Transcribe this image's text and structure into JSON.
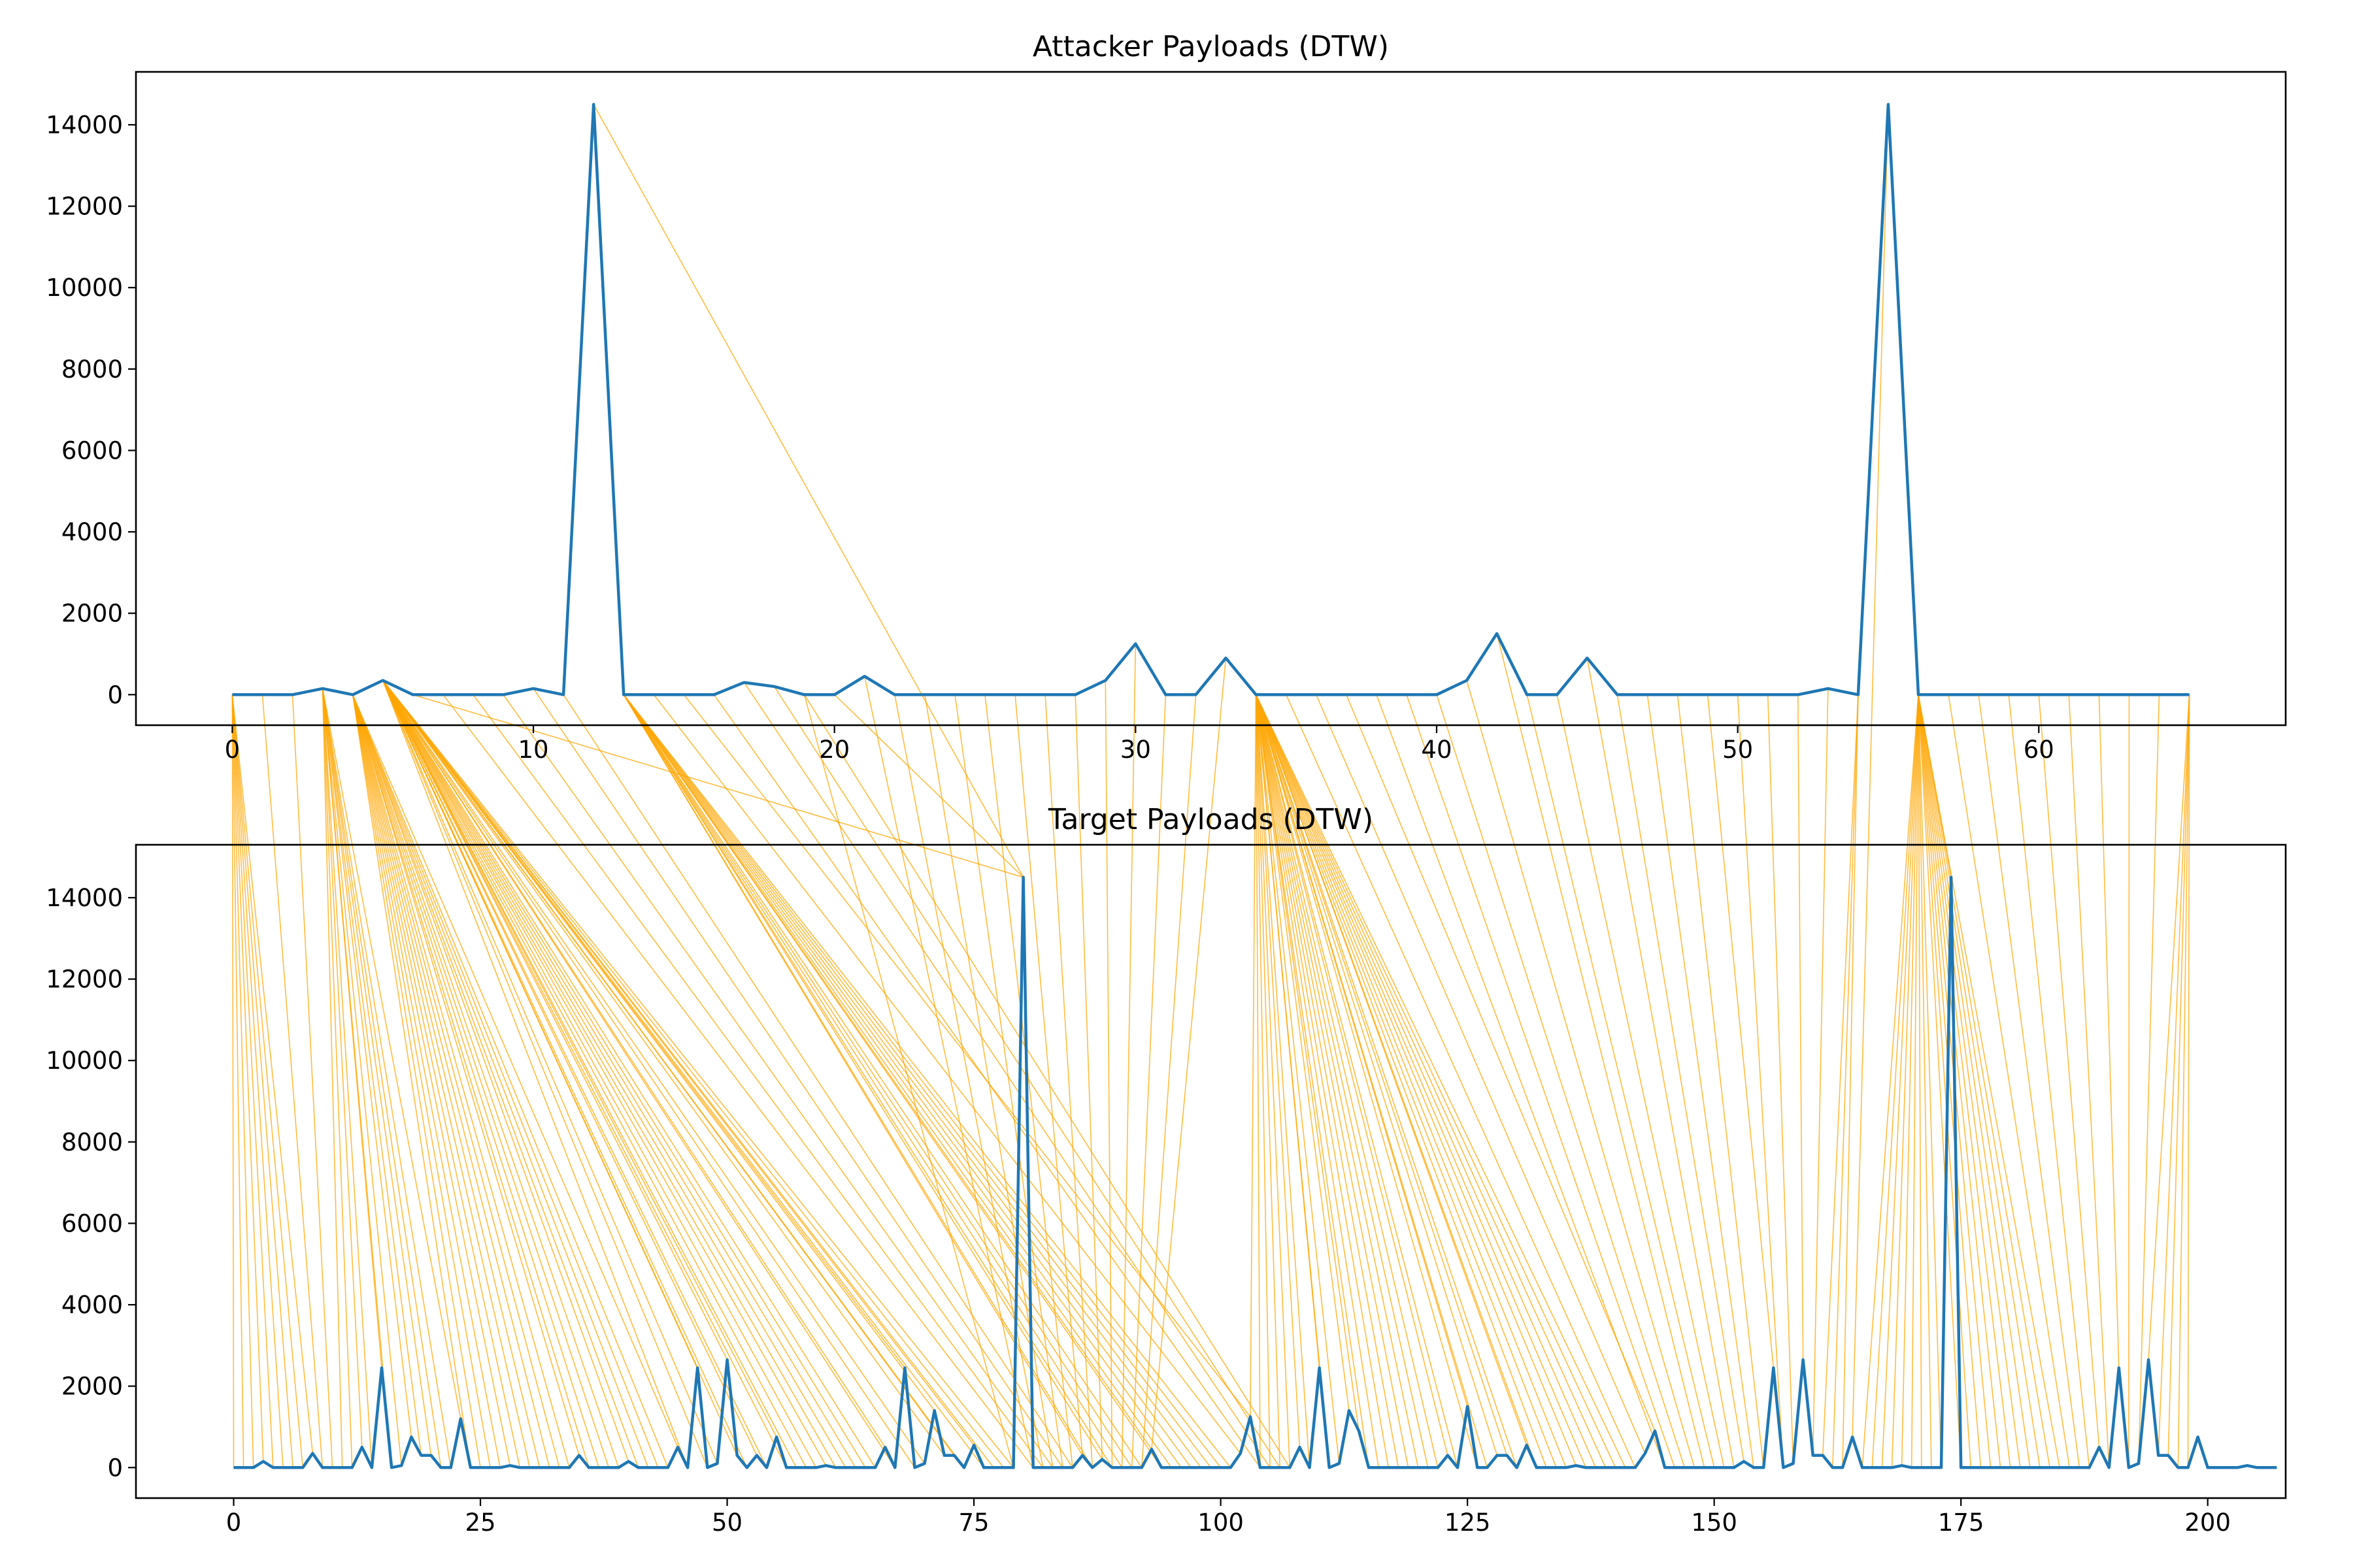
{
  "chart_data": {
    "type": "line",
    "colors": {
      "series": "#1f77b4",
      "alignment": "#ffa500"
    },
    "panels": [
      {
        "id": "attacker",
        "title": "Attacker Payloads (DTW)",
        "xlim": [
          -3.2,
          68.2
        ],
        "ylim": [
          -750,
          15300
        ],
        "xticks": [
          0,
          10,
          20,
          30,
          40,
          50,
          60
        ],
        "yticks": [
          0,
          2000,
          4000,
          6000,
          8000,
          10000,
          12000,
          14000
        ],
        "series": [
          {
            "values": [
              0,
              0,
              0,
              150,
              0,
              350,
              0,
              0,
              0,
              0,
              150,
              0,
              14500,
              0,
              0,
              0,
              0,
              300,
              200,
              0,
              0,
              450,
              0,
              0,
              0,
              0,
              0,
              0,
              0,
              350,
              1250,
              0,
              0,
              900,
              0,
              0,
              0,
              0,
              0,
              0,
              0,
              350,
              1500,
              0,
              0,
              900,
              0,
              0,
              0,
              0,
              0,
              0,
              0,
              150,
              0,
              14500,
              0,
              0,
              0,
              0,
              0,
              0,
              0,
              0,
              0,
              0
            ]
          }
        ]
      },
      {
        "id": "target",
        "title": "Target Payloads (DTW)",
        "xlim": [
          -9.9,
          207.9
        ],
        "ylim": [
          -750,
          15300
        ],
        "xticks": [
          0,
          25,
          50,
          75,
          100,
          125,
          150,
          175,
          200
        ],
        "yticks": [
          0,
          2000,
          4000,
          6000,
          8000,
          10000,
          12000,
          14000
        ],
        "series": [
          {
            "values": [
              0,
              0,
              0,
              150,
              0,
              0,
              0,
              0,
              350,
              0,
              0,
              0,
              0,
              500,
              0,
              2450,
              0,
              50,
              750,
              300,
              300,
              0,
              0,
              1200,
              0,
              0,
              0,
              0,
              50,
              0,
              0,
              0,
              0,
              0,
              0,
              300,
              0,
              0,
              0,
              0,
              150,
              0,
              0,
              0,
              0,
              500,
              0,
              2450,
              0,
              100,
              2650,
              300,
              0,
              300,
              0,
              750,
              0,
              0,
              0,
              0,
              50,
              0,
              0,
              0,
              0,
              0,
              500,
              0,
              2450,
              0,
              100,
              1400,
              300,
              300,
              0,
              550,
              0,
              0,
              0,
              0,
              14500,
              0,
              0,
              0,
              0,
              0,
              300,
              0,
              200,
              0,
              0,
              0,
              0,
              450,
              0,
              0,
              0,
              0,
              0,
              0,
              0,
              0,
              350,
              1250,
              0,
              0,
              0,
              0,
              500,
              0,
              2450,
              0,
              100,
              1400,
              900,
              0,
              0,
              0,
              0,
              0,
              0,
              0,
              0,
              300,
              0,
              1500,
              0,
              0,
              300,
              300,
              0,
              550,
              0,
              0,
              0,
              0,
              50,
              0,
              0,
              0,
              0,
              0,
              0,
              350,
              900,
              0,
              0,
              0,
              0,
              0,
              0,
              0,
              0,
              150,
              0,
              0,
              2450,
              0,
              100,
              2650,
              300,
              300,
              0,
              0,
              750,
              0,
              0,
              0,
              0,
              50,
              0,
              0,
              0,
              0,
              14500,
              0,
              0,
              0,
              0,
              0,
              0,
              0,
              0,
              0,
              0,
              0,
              0,
              0,
              0,
              500,
              0,
              2450,
              0,
              100,
              2650,
              300,
              300,
              0,
              0,
              750,
              0,
              0,
              0,
              0,
              50,
              0,
              0,
              0
            ]
          }
        ]
      }
    ],
    "alignment": {
      "description_free": true,
      "pairs": [
        [
          0,
          0
        ],
        [
          0,
          1
        ],
        [
          0,
          2
        ],
        [
          0,
          3
        ],
        [
          0,
          4
        ],
        [
          0,
          5
        ],
        [
          0,
          6
        ],
        [
          0,
          7
        ],
        [
          0,
          8
        ],
        [
          1,
          9
        ],
        [
          2,
          10
        ],
        [
          3,
          11
        ],
        [
          3,
          12
        ],
        [
          3,
          13
        ],
        [
          3,
          14
        ],
        [
          3,
          15
        ],
        [
          3,
          16
        ],
        [
          3,
          17
        ],
        [
          3,
          18
        ],
        [
          3,
          19
        ],
        [
          3,
          20
        ],
        [
          3,
          21
        ],
        [
          3,
          22
        ],
        [
          3,
          23
        ],
        [
          4,
          24
        ],
        [
          4,
          25
        ],
        [
          4,
          26
        ],
        [
          4,
          27
        ],
        [
          4,
          28
        ],
        [
          4,
          29
        ],
        [
          4,
          30
        ],
        [
          4,
          31
        ],
        [
          4,
          32
        ],
        [
          4,
          33
        ],
        [
          4,
          34
        ],
        [
          4,
          35
        ],
        [
          4,
          36
        ],
        [
          4,
          37
        ],
        [
          4,
          38
        ],
        [
          4,
          39
        ],
        [
          4,
          40
        ],
        [
          4,
          41
        ],
        [
          4,
          42
        ],
        [
          4,
          43
        ],
        [
          4,
          44
        ],
        [
          4,
          45
        ],
        [
          5,
          46
        ],
        [
          5,
          47
        ],
        [
          5,
          48
        ],
        [
          5,
          49
        ],
        [
          5,
          50
        ],
        [
          5,
          51
        ],
        [
          5,
          52
        ],
        [
          5,
          53
        ],
        [
          5,
          54
        ],
        [
          5,
          55
        ],
        [
          5,
          56
        ],
        [
          5,
          57
        ],
        [
          5,
          58
        ],
        [
          5,
          59
        ],
        [
          5,
          60
        ],
        [
          5,
          61
        ],
        [
          5,
          62
        ],
        [
          5,
          63
        ],
        [
          5,
          64
        ],
        [
          5,
          65
        ],
        [
          5,
          66
        ],
        [
          5,
          67
        ],
        [
          5,
          68
        ],
        [
          5,
          69
        ],
        [
          5,
          70
        ],
        [
          5,
          71
        ],
        [
          5,
          72
        ],
        [
          5,
          73
        ],
        [
          5,
          74
        ],
        [
          5,
          75
        ],
        [
          5,
          76
        ],
        [
          5,
          77
        ],
        [
          5,
          78
        ],
        [
          5,
          79
        ],
        [
          6,
          80
        ],
        [
          7,
          81
        ],
        [
          8,
          82
        ],
        [
          9,
          83
        ],
        [
          10,
          84
        ],
        [
          11,
          85
        ],
        [
          12,
          80
        ],
        [
          13,
          86
        ],
        [
          13,
          87
        ],
        [
          13,
          88
        ],
        [
          13,
          89
        ],
        [
          13,
          90
        ],
        [
          13,
          91
        ],
        [
          13,
          92
        ],
        [
          13,
          93
        ],
        [
          13,
          94
        ],
        [
          13,
          95
        ],
        [
          13,
          96
        ],
        [
          13,
          97
        ],
        [
          13,
          98
        ],
        [
          13,
          99
        ],
        [
          13,
          100
        ],
        [
          13,
          101
        ],
        [
          14,
          102
        ],
        [
          15,
          103
        ],
        [
          16,
          104
        ],
        [
          17,
          105
        ],
        [
          18,
          106
        ],
        [
          19,
          107
        ],
        [
          19,
          79
        ],
        [
          20,
          80
        ],
        [
          21,
          81
        ],
        [
          22,
          82
        ],
        [
          23,
          83
        ],
        [
          24,
          84
        ],
        [
          25,
          85
        ],
        [
          26,
          86
        ],
        [
          27,
          87
        ],
        [
          28,
          88
        ],
        [
          29,
          89
        ],
        [
          30,
          90
        ],
        [
          31,
          91
        ],
        [
          32,
          92
        ],
        [
          33,
          93
        ],
        [
          34,
          103
        ],
        [
          34,
          104
        ],
        [
          34,
          105
        ],
        [
          34,
          106
        ],
        [
          34,
          107
        ],
        [
          34,
          108
        ],
        [
          34,
          109
        ],
        [
          34,
          110
        ],
        [
          34,
          111
        ],
        [
          34,
          112
        ],
        [
          34,
          113
        ],
        [
          34,
          114
        ],
        [
          34,
          115
        ],
        [
          34,
          116
        ],
        [
          34,
          117
        ],
        [
          34,
          118
        ],
        [
          34,
          119
        ],
        [
          34,
          120
        ],
        [
          34,
          121
        ],
        [
          34,
          122
        ],
        [
          34,
          123
        ],
        [
          34,
          124
        ],
        [
          34,
          125
        ],
        [
          34,
          126
        ],
        [
          34,
          127
        ],
        [
          34,
          128
        ],
        [
          34,
          129
        ],
        [
          34,
          130
        ],
        [
          34,
          131
        ],
        [
          34,
          132
        ],
        [
          34,
          133
        ],
        [
          34,
          134
        ],
        [
          34,
          135
        ],
        [
          34,
          136
        ],
        [
          34,
          137
        ],
        [
          34,
          138
        ],
        [
          34,
          139
        ],
        [
          34,
          140
        ],
        [
          34,
          141
        ],
        [
          35,
          142
        ],
        [
          36,
          143
        ],
        [
          37,
          144
        ],
        [
          38,
          145
        ],
        [
          39,
          146
        ],
        [
          40,
          147
        ],
        [
          41,
          148
        ],
        [
          42,
          149
        ],
        [
          43,
          150
        ],
        [
          44,
          151
        ],
        [
          45,
          152
        ],
        [
          46,
          153
        ],
        [
          47,
          154
        ],
        [
          48,
          155
        ],
        [
          49,
          156
        ],
        [
          50,
          157
        ],
        [
          51,
          158
        ],
        [
          52,
          159
        ],
        [
          53,
          160
        ],
        [
          54,
          161
        ],
        [
          54,
          162
        ],
        [
          54,
          163
        ],
        [
          55,
          164
        ],
        [
          56,
          165
        ],
        [
          56,
          166
        ],
        [
          56,
          167
        ],
        [
          56,
          168
        ],
        [
          56,
          169
        ],
        [
          56,
          170
        ],
        [
          56,
          171
        ],
        [
          56,
          172
        ],
        [
          56,
          173
        ],
        [
          56,
          174
        ],
        [
          56,
          175
        ],
        [
          56,
          176
        ],
        [
          56,
          177
        ],
        [
          56,
          178
        ],
        [
          56,
          179
        ],
        [
          56,
          180
        ],
        [
          56,
          181
        ],
        [
          56,
          182
        ],
        [
          56,
          183
        ],
        [
          56,
          184
        ],
        [
          56,
          185
        ],
        [
          57,
          186
        ],
        [
          58,
          187
        ],
        [
          59,
          188
        ],
        [
          60,
          189
        ],
        [
          61,
          190
        ],
        [
          62,
          191
        ],
        [
          63,
          192
        ],
        [
          64,
          193
        ],
        [
          65,
          194
        ],
        [
          65,
          195
        ],
        [
          65,
          196
        ],
        [
          65,
          197
        ],
        [
          65,
          198
        ]
      ]
    }
  }
}
